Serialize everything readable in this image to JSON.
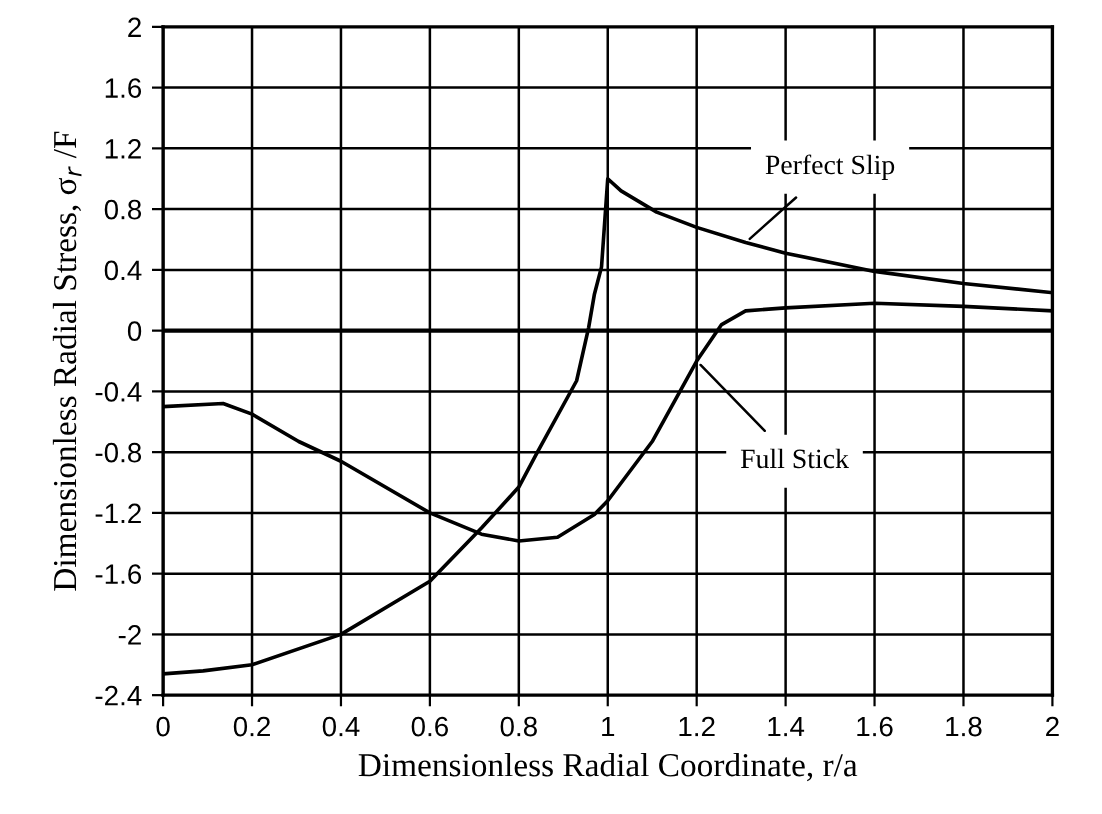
{
  "chart_data": {
    "type": "line",
    "xlabel": "Dimensionless Radial Coordinate, r/a",
    "ylabel": "Dimensionless Radial Stress, σ$_{r}$ /F",
    "series": [
      {
        "name": "Perfect Slip",
        "color": "#000000",
        "x": [
          0,
          0.09,
          0.2,
          0.4,
          0.6,
          0.716,
          0.8,
          0.84,
          0.93,
          0.957,
          0.97,
          0.986,
          1.0,
          1.03,
          1.11,
          1.2,
          1.31,
          1.4,
          1.6,
          1.8,
          2.0
        ],
        "values": [
          -2.26,
          -2.24,
          -2.2,
          -2.0,
          -1.65,
          -1.3,
          -1.03,
          -0.81,
          -0.33,
          0.02,
          0.24,
          0.42,
          1.0,
          0.92,
          0.78,
          0.68,
          0.58,
          0.51,
          0.39,
          0.31,
          0.25
        ]
      },
      {
        "name": "Full Stick",
        "color": "#000000",
        "x": [
          0,
          0.135,
          0.2,
          0.305,
          0.4,
          0.6,
          0.716,
          0.8,
          0.887,
          0.97,
          1.0,
          1.1,
          1.2,
          1.256,
          1.31,
          1.4,
          1.6,
          1.8,
          2.0
        ],
        "values": [
          -0.5,
          -0.48,
          -0.55,
          -0.73,
          -0.86,
          -1.2,
          -1.34,
          -1.385,
          -1.36,
          -1.21,
          -1.12,
          -0.73,
          -0.2,
          0.04,
          0.13,
          0.15,
          0.18,
          0.16,
          0.13
        ]
      }
    ],
    "xlim": [
      0,
      2
    ],
    "xticks": [
      0,
      0.2,
      0.4,
      0.6,
      0.8,
      1,
      1.2,
      1.4,
      1.6,
      1.8,
      2
    ],
    "ylim": [
      -2.4,
      2
    ],
    "yticks": [
      -2.4,
      -2,
      -1.6,
      -1.2,
      -0.8,
      -0.4,
      0,
      0.4,
      0.8,
      1.2,
      1.6,
      2
    ],
    "grid": true,
    "marker": "none",
    "line_style": "solid",
    "ref_lines": [
      {
        "axis": "y",
        "value": 0,
        "color": "#000000"
      }
    ]
  }
}
